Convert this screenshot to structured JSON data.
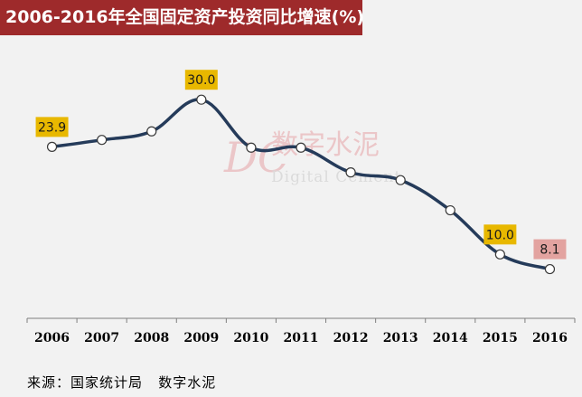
{
  "title": "2006-2016年全国固定资产投资同比增速(%)",
  "source": "来源：国家统计局   数字水泥",
  "watermark": {
    "logo_letters": "DC",
    "cn": "数字水泥",
    "en": "Digital Cement"
  },
  "colors": {
    "title_bg": "#9e2a2b",
    "line": "#253b5a",
    "label_yellow": "#e8b800",
    "label_pink": "#e3a3a0",
    "watermark": "#e6a3a6"
  },
  "chart_data": {
    "type": "line",
    "categories": [
      "2006",
      "2007",
      "2008",
      "2009",
      "2010",
      "2011",
      "2012",
      "2013",
      "2014",
      "2015",
      "2016"
    ],
    "series": [
      {
        "values": [
          23.9,
          24.8,
          25.9,
          30.0,
          23.8,
          23.8,
          20.6,
          19.6,
          15.7,
          10.0,
          8.1
        ]
      }
    ],
    "data_labels": [
      {
        "index": 0,
        "text": "23.9",
        "style": "yellow"
      },
      {
        "index": 3,
        "text": "30.0",
        "style": "yellow"
      },
      {
        "index": 9,
        "text": "10.0",
        "style": "yellow"
      },
      {
        "index": 10,
        "text": "8.1",
        "style": "pink"
      }
    ],
    "ylim": [
      0,
      40
    ],
    "grid": false,
    "legend": "none"
  }
}
